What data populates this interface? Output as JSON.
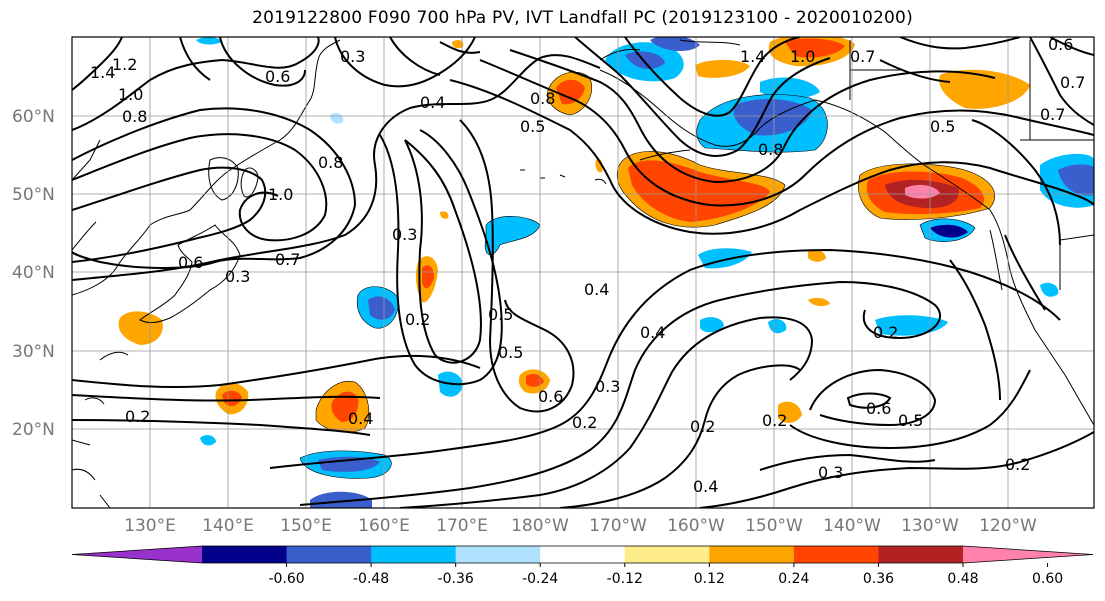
{
  "title": "2019122800 F090 700 hPa PV, IVT Landfall PC (2019123100 - 2020010200)",
  "lat_labels": [
    "60°N",
    "50°N",
    "40°N",
    "30°N",
    "20°N"
  ],
  "lon_labels": [
    "130°E",
    "140°E",
    "150°E",
    "160°E",
    "170°E",
    "180°W",
    "170°W",
    "160°W",
    "150°W",
    "140°W",
    "130°W",
    "120°W"
  ],
  "colorbar": {
    "colors": [
      "#9932cc",
      "#00008b",
      "#3a5fcd",
      "#00bfff",
      "#b0e2ff",
      "#ffffff",
      "#ffec8b",
      "#ffa500",
      "#ff4500",
      "#b22222",
      "#ff82ab"
    ],
    "tick_labels": [
      "-0.60",
      "-0.48",
      "-0.36",
      "-0.24",
      "-0.12",
      "0.12",
      "0.24",
      "0.36",
      "0.48",
      "0.60"
    ]
  },
  "contour_labels": [
    "0.6",
    "0.3",
    "1.4",
    "1.2",
    "1.0",
    "0.8",
    "0.8",
    "0.4",
    "0.5",
    "0.8",
    "1.4",
    "1.0",
    "0.7",
    "0.6",
    "0.7",
    "0.5",
    "0.8",
    "1.0",
    "0.7",
    "0.6",
    "0.3",
    "0.3",
    "0.2",
    "0.5",
    "0.4",
    "0.5",
    "0.6",
    "0.4",
    "0.3",
    "0.2",
    "0.2",
    "0.4",
    "0.2",
    "0.2",
    "0.6",
    "0.5",
    "0.3",
    "0.2",
    "0.4",
    "0.2",
    "0.7"
  ]
}
